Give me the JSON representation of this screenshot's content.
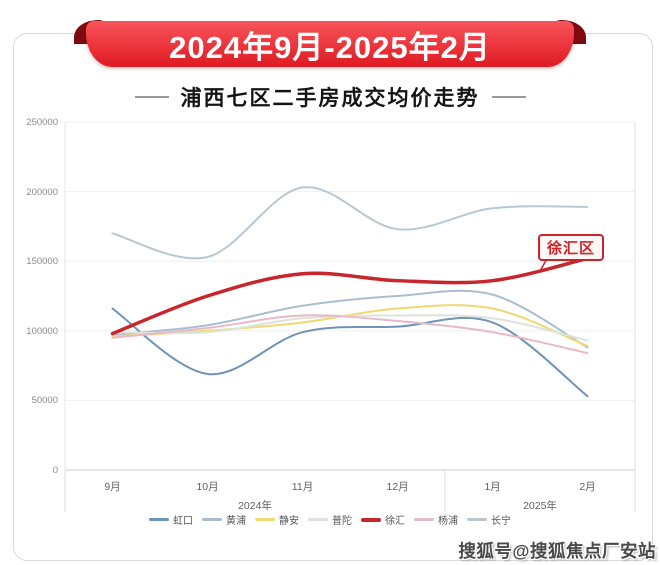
{
  "banner": {
    "title": "2024年9月-2025年2月",
    "accent_color": "#e02128",
    "fold_color": "#7d0b10"
  },
  "subtitle": "浦西七区二手房成交均价走势",
  "annotation": {
    "label": "徐汇区",
    "color": "#c9252c"
  },
  "watermark": "搜狐号@搜狐焦点厂安站",
  "chart_data": {
    "type": "line",
    "title": "浦西七区二手房成交均价走势",
    "xlabel": "",
    "ylabel": "",
    "categories": [
      "9月",
      "10月",
      "11月",
      "12月",
      "1月",
      "2月"
    ],
    "year_groups": [
      {
        "label": "2024年",
        "span": 4
      },
      {
        "label": "2025年",
        "span": 2
      }
    ],
    "ylim": [
      0,
      250000
    ],
    "ytick_interval": 50000,
    "yticks": [
      "0",
      "50000",
      "100000",
      "150000",
      "200000",
      "250000"
    ],
    "grid": true,
    "legend_position": "bottom",
    "series": [
      {
        "name": "虹口",
        "color": "#7093b7",
        "width": 2,
        "values": [
          116000,
          69000,
          99000,
          103000,
          106000,
          53000
        ]
      },
      {
        "name": "黄浦",
        "color": "#a9bed2",
        "width": 2,
        "values": [
          97000,
          104000,
          118000,
          125000,
          126000,
          88000
        ]
      },
      {
        "name": "静安",
        "color": "#f0d874",
        "width": 2,
        "values": [
          96000,
          100000,
          106000,
          116000,
          116000,
          89000
        ]
      },
      {
        "name": "普陀",
        "color": "#dce3d9",
        "width": 2,
        "values": [
          99000,
          99000,
          109000,
          111000,
          109000,
          93000
        ]
      },
      {
        "name": "徐汇",
        "color": "#c9252c",
        "width": 3.5,
        "values": [
          98000,
          125000,
          141000,
          136000,
          136000,
          152000
        ]
      },
      {
        "name": "杨浦",
        "color": "#e7b9c6",
        "width": 2,
        "values": [
          95000,
          102000,
          111000,
          107000,
          99000,
          84000
        ]
      },
      {
        "name": "长宁",
        "color": "#b9c7d2",
        "width": 2,
        "values": [
          170000,
          153000,
          203000,
          173000,
          188000,
          189000
        ]
      }
    ]
  }
}
